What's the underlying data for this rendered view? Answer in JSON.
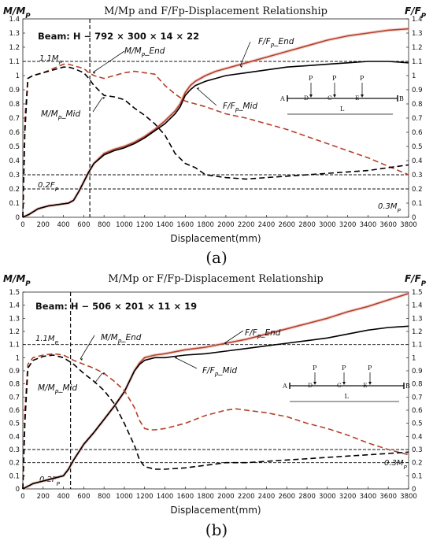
{
  "chart_data": [
    {
      "type": "line",
      "panel_label": "(a)",
      "title": "M/Mp and F/Fp-Displacement Relationship",
      "left_axis_label": "M/M_P",
      "right_axis_label": "F/F_P",
      "xlabel": "Displacement(mm)",
      "xlim": [
        0,
        3800
      ],
      "ylim": [
        0,
        1.4
      ],
      "x_ticks": [
        0,
        200,
        400,
        600,
        800,
        1000,
        1200,
        1400,
        1600,
        1800,
        2000,
        2200,
        2400,
        2600,
        2800,
        3000,
        3200,
        3400,
        3600,
        3800
      ],
      "y_ticks": [
        0,
        0.1,
        0.2,
        0.3,
        0.4,
        0.5,
        0.6,
        0.7,
        0.8,
        0.9,
        1,
        1.1,
        1.2,
        1.3,
        1.4
      ],
      "beam_label": "Beam:",
      "beam_section": "H − 792 × 300 × 14 × 22",
      "grid": false,
      "ref_lines": [
        {
          "y": 1.1,
          "label": "1.1M_P"
        },
        {
          "y": 0.3,
          "label": "0.3M_P"
        },
        {
          "y": 0.2,
          "label": "0.2F_P"
        }
      ],
      "vline_x": 660,
      "annotations": [
        "F/F_P_End",
        "M/M_P_End",
        "M/M_P_Mid",
        "F/F_P_Mid"
      ],
      "inset": {
        "load": "P",
        "points": [
          "A",
          "D",
          "C",
          "E",
          "B"
        ],
        "span": "L"
      },
      "series": [
        {
          "name": "F/F_P_End",
          "color": "#b5402a",
          "style": "solid",
          "x": [
            0,
            60,
            150,
            250,
            350,
            450,
            500,
            550,
            600,
            650,
            700,
            800,
            900,
            1000,
            1100,
            1200,
            1300,
            1400,
            1500,
            1550,
            1600,
            1650,
            1700,
            1800,
            1900,
            2000,
            2200,
            2400,
            2600,
            2800,
            3000,
            3200,
            3400,
            3600,
            3800
          ],
          "y": [
            0,
            0.02,
            0.06,
            0.08,
            0.09,
            0.1,
            0.12,
            0.18,
            0.25,
            0.32,
            0.38,
            0.45,
            0.48,
            0.5,
            0.53,
            0.57,
            0.62,
            0.68,
            0.75,
            0.8,
            0.88,
            0.93,
            0.96,
            1.0,
            1.03,
            1.05,
            1.09,
            1.13,
            1.17,
            1.21,
            1.25,
            1.28,
            1.3,
            1.32,
            1.33
          ]
        },
        {
          "name": "F/F_P_Mid",
          "color": "#000000",
          "style": "solid",
          "x": [
            0,
            60,
            150,
            250,
            350,
            450,
            500,
            550,
            600,
            650,
            700,
            800,
            900,
            1000,
            1100,
            1200,
            1300,
            1400,
            1500,
            1550,
            1600,
            1650,
            1700,
            1800,
            1900,
            2000,
            2200,
            2400,
            2600,
            2800,
            3000,
            3200,
            3400,
            3600,
            3800
          ],
          "y": [
            0,
            0.02,
            0.06,
            0.08,
            0.09,
            0.1,
            0.12,
            0.18,
            0.25,
            0.32,
            0.38,
            0.44,
            0.47,
            0.49,
            0.52,
            0.56,
            0.61,
            0.66,
            0.73,
            0.78,
            0.86,
            0.9,
            0.93,
            0.96,
            0.98,
            1.0,
            1.02,
            1.04,
            1.06,
            1.07,
            1.08,
            1.09,
            1.1,
            1.1,
            1.09
          ]
        },
        {
          "name": "M/M_P_End",
          "color": "#b5402a",
          "style": "dash",
          "x": [
            0,
            20,
            50,
            100,
            200,
            300,
            400,
            450,
            500,
            600,
            650,
            700,
            800,
            900,
            1000,
            1100,
            1200,
            1300,
            1400,
            1500,
            1600,
            1700,
            1800,
            2000,
            2200,
            2400,
            2600,
            2800,
            3000,
            3200,
            3400,
            3600,
            3800
          ],
          "y": [
            0,
            0.7,
            0.98,
            1.0,
            1.02,
            1.05,
            1.08,
            1.08,
            1.07,
            1.05,
            1.02,
            1.0,
            0.98,
            1.0,
            1.02,
            1.03,
            1.02,
            1.01,
            0.93,
            0.87,
            0.82,
            0.8,
            0.78,
            0.73,
            0.7,
            0.66,
            0.62,
            0.57,
            0.52,
            0.47,
            0.42,
            0.36,
            0.3
          ]
        },
        {
          "name": "M/M_P_Mid",
          "color": "#000000",
          "style": "dash",
          "x": [
            0,
            20,
            50,
            100,
            200,
            300,
            400,
            450,
            500,
            600,
            650,
            700,
            800,
            900,
            1000,
            1100,
            1200,
            1300,
            1400,
            1500,
            1600,
            1700,
            1800,
            2000,
            2200,
            2400,
            2600,
            2800,
            3000,
            3200,
            3400,
            3600,
            3800
          ],
          "y": [
            0,
            0.6,
            0.98,
            1.0,
            1.02,
            1.04,
            1.06,
            1.06,
            1.05,
            1.02,
            0.98,
            0.93,
            0.86,
            0.85,
            0.83,
            0.77,
            0.72,
            0.66,
            0.58,
            0.45,
            0.38,
            0.35,
            0.3,
            0.28,
            0.27,
            0.28,
            0.29,
            0.3,
            0.31,
            0.32,
            0.33,
            0.35,
            0.37
          ]
        }
      ]
    },
    {
      "type": "line",
      "panel_label": "(b)",
      "title": "M/Mp or F/Fp-Displacement Relationship",
      "left_axis_label": "M/M_P",
      "right_axis_label": "F/F_P",
      "xlabel": "Displacement(mm)",
      "xlim": [
        0,
        3800
      ],
      "ylim": [
        0,
        1.5
      ],
      "x_ticks": [
        0,
        200,
        400,
        600,
        800,
        1000,
        1200,
        1400,
        1600,
        1800,
        2000,
        2200,
        2400,
        2600,
        2800,
        3000,
        3200,
        3400,
        3600,
        3800
      ],
      "y_ticks": [
        0,
        0.1,
        0.2,
        0.3,
        0.4,
        0.5,
        0.6,
        0.7,
        0.8,
        0.9,
        1,
        1.1,
        1.2,
        1.3,
        1.4,
        1.5
      ],
      "beam_label": "Beam:",
      "beam_section": "H − 506 × 201 × 11 × 19",
      "grid": false,
      "ref_lines": [
        {
          "y": 1.1,
          "label": "1.1M_P"
        },
        {
          "y": 0.3,
          "label": "0.3M_P"
        },
        {
          "y": 0.2,
          "label": "0.2F_P"
        }
      ],
      "vline_x": 470,
      "annotations": [
        "F/F_P_End",
        "M/M_P_End",
        "M/M_P_Mid",
        "F/F_P_Mid"
      ],
      "inset": {
        "load": "P",
        "points": [
          "A",
          "D",
          "C",
          "E",
          "B"
        ],
        "span": "L"
      },
      "series": [
        {
          "name": "F/F_P_End",
          "color": "#b5402a",
          "style": "solid",
          "x": [
            0,
            50,
            100,
            200,
            300,
            400,
            450,
            500,
            600,
            700,
            800,
            900,
            1000,
            1050,
            1100,
            1150,
            1200,
            1300,
            1400,
            1600,
            1800,
            2000,
            2200,
            2400,
            2600,
            2800,
            3000,
            3200,
            3400,
            3600,
            3800
          ],
          "y": [
            0,
            0.02,
            0.04,
            0.06,
            0.08,
            0.1,
            0.15,
            0.22,
            0.34,
            0.43,
            0.53,
            0.63,
            0.74,
            0.82,
            0.9,
            0.96,
            1.0,
            1.02,
            1.03,
            1.06,
            1.08,
            1.11,
            1.14,
            1.18,
            1.22,
            1.26,
            1.3,
            1.35,
            1.39,
            1.44,
            1.49
          ]
        },
        {
          "name": "F/F_P_Mid",
          "color": "#000000",
          "style": "solid",
          "x": [
            0,
            50,
            100,
            200,
            300,
            400,
            450,
            500,
            600,
            700,
            800,
            900,
            1000,
            1050,
            1100,
            1150,
            1200,
            1300,
            1400,
            1600,
            1800,
            2000,
            2200,
            2400,
            2600,
            2800,
            3000,
            3200,
            3400,
            3600,
            3800
          ],
          "y": [
            0,
            0.02,
            0.04,
            0.06,
            0.08,
            0.1,
            0.15,
            0.22,
            0.34,
            0.43,
            0.53,
            0.63,
            0.74,
            0.82,
            0.9,
            0.95,
            0.98,
            1.0,
            1.0,
            1.02,
            1.03,
            1.05,
            1.07,
            1.09,
            1.11,
            1.13,
            1.15,
            1.18,
            1.21,
            1.23,
            1.24
          ]
        },
        {
          "name": "M/M_P_End",
          "color": "#b5402a",
          "style": "dash",
          "x": [
            0,
            20,
            50,
            100,
            200,
            300,
            400,
            500,
            600,
            700,
            800,
            900,
            1000,
            1100,
            1150,
            1200,
            1250,
            1300,
            1400,
            1600,
            1800,
            2000,
            2100,
            2200,
            2400,
            2600,
            2800,
            3000,
            3200,
            3400,
            3600,
            3800
          ],
          "y": [
            0,
            0.6,
            0.95,
            1.0,
            1.02,
            1.03,
            1.02,
            0.98,
            0.95,
            0.92,
            0.88,
            0.82,
            0.75,
            0.62,
            0.52,
            0.46,
            0.45,
            0.45,
            0.46,
            0.5,
            0.56,
            0.6,
            0.61,
            0.6,
            0.58,
            0.55,
            0.5,
            0.46,
            0.41,
            0.35,
            0.3,
            0.26
          ]
        },
        {
          "name": "M/M_P_Mid",
          "color": "#000000",
          "style": "dash",
          "x": [
            0,
            20,
            50,
            100,
            200,
            300,
            400,
            500,
            600,
            700,
            800,
            900,
            1000,
            1100,
            1150,
            1200,
            1250,
            1300,
            1400,
            1600,
            1800,
            2000,
            2100,
            2200,
            2400,
            2600,
            2800,
            3000,
            3200,
            3400,
            3600,
            3800
          ],
          "y": [
            0,
            0.5,
            0.92,
            0.98,
            1.01,
            1.02,
            1.0,
            0.95,
            0.88,
            0.82,
            0.75,
            0.65,
            0.5,
            0.33,
            0.22,
            0.17,
            0.16,
            0.15,
            0.15,
            0.16,
            0.18,
            0.2,
            0.2,
            0.2,
            0.21,
            0.22,
            0.23,
            0.24,
            0.25,
            0.26,
            0.27,
            0.28
          ]
        }
      ]
    }
  ]
}
